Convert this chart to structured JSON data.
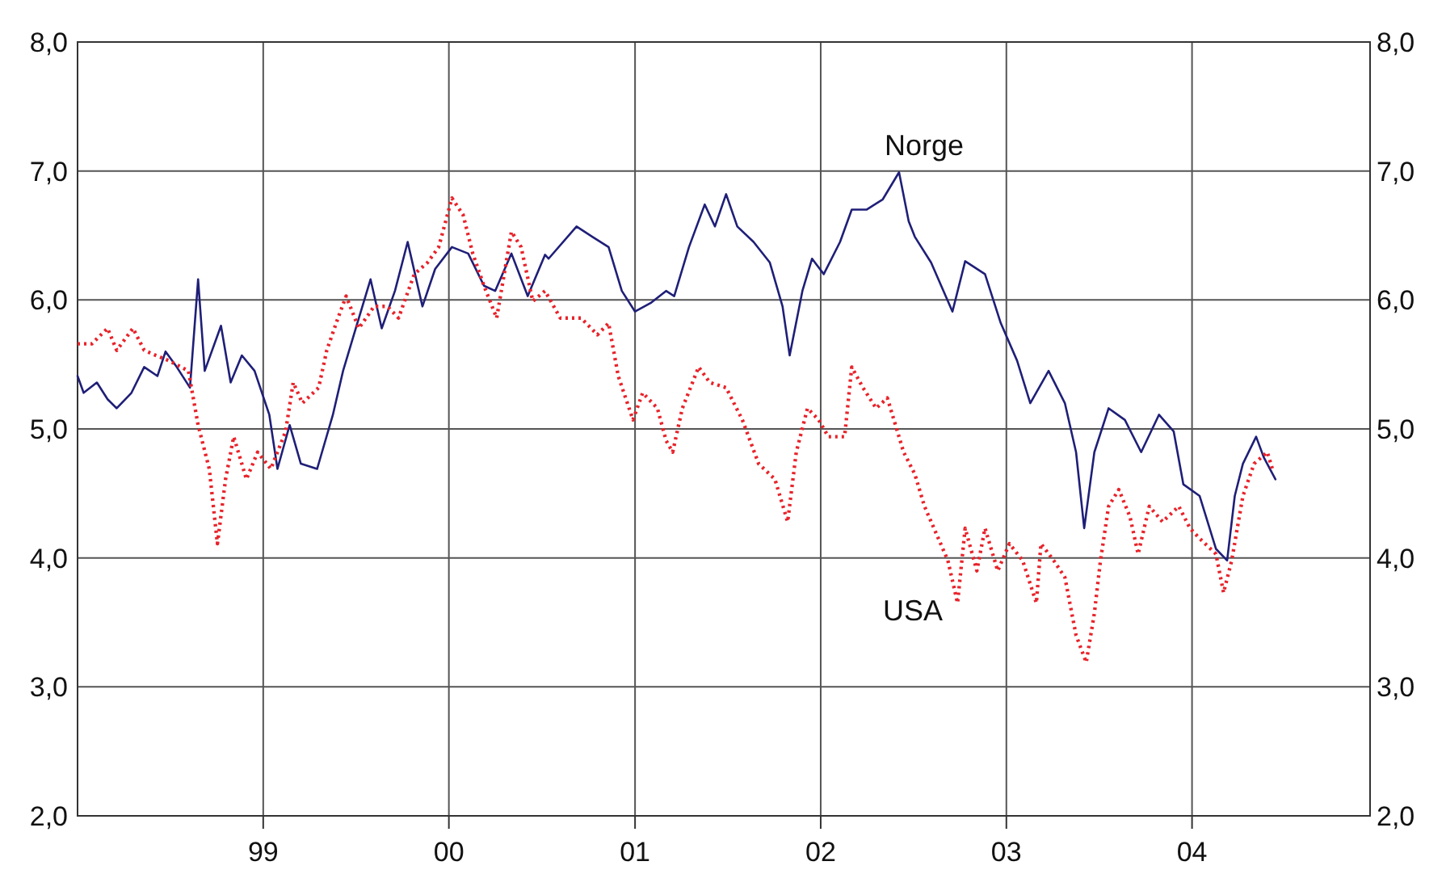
{
  "chart_data": {
    "type": "line",
    "xlim": [
      "1998-01-01",
      "2004-12-16"
    ],
    "xticks": [
      {
        "value": "1999-01-01",
        "label": "99"
      },
      {
        "value": "2000-01-01",
        "label": "00"
      },
      {
        "value": "2001-01-01",
        "label": "01"
      },
      {
        "value": "2002-01-01",
        "label": "02"
      },
      {
        "value": "2003-01-01",
        "label": "03"
      },
      {
        "value": "2004-01-01",
        "label": "04"
      }
    ],
    "ylim": [
      2,
      8
    ],
    "yticks": [
      {
        "value": 2,
        "label": "2,0"
      },
      {
        "value": 3,
        "label": "3,0"
      },
      {
        "value": 4,
        "label": "4,0"
      },
      {
        "value": 5,
        "label": "5,0"
      },
      {
        "value": 6,
        "label": "6,0"
      },
      {
        "value": 7,
        "label": "7,0"
      },
      {
        "value": 8,
        "label": "8,0"
      }
    ],
    "y2lim": [
      2,
      8
    ],
    "y2ticks": [
      {
        "value": 2,
        "label": "2,0"
      },
      {
        "value": 3,
        "label": "3,0"
      },
      {
        "value": 4,
        "label": "4,0"
      },
      {
        "value": 5,
        "label": "5,0"
      },
      {
        "value": 6,
        "label": "6,0"
      },
      {
        "value": 7,
        "label": "7,0"
      },
      {
        "value": 8,
        "label": "8,0"
      }
    ],
    "grid": true,
    "legend": false,
    "series": [
      {
        "name": "Norge",
        "color": "#1f1f78",
        "line_style": "solid",
        "x": [
          "1998-01-01",
          "1998-01-13",
          "1998-02-08",
          "1998-03-01",
          "1998-03-19",
          "1998-04-17",
          "1998-05-12",
          "1998-06-07",
          "1998-06-23",
          "1998-07-15",
          "1998-08-10",
          "1998-08-26",
          "1998-09-08",
          "1998-10-10",
          "1998-10-29",
          "1998-11-20",
          "1998-12-15",
          "1999-01-13",
          "1999-01-29",
          "1999-02-22",
          "1999-03-16",
          "1999-04-17",
          "1999-05-18",
          "1999-06-07",
          "1999-07-05",
          "1999-07-31",
          "1999-08-22",
          "1999-09-17",
          "1999-10-12",
          "1999-11-10",
          "1999-12-05",
          "2000-01-07",
          "2000-02-08",
          "2000-03-10",
          "2000-04-01",
          "2000-05-03",
          "2000-06-04",
          "2000-07-08",
          "2000-07-15",
          "2000-09-08",
          "2000-10-09",
          "2000-11-10",
          "2000-12-06",
          "2001-01-01",
          "2001-02-02",
          "2001-03-03",
          "2001-03-19",
          "2001-04-17",
          "2001-05-18",
          "2001-06-07",
          "2001-06-29",
          "2001-07-21",
          "2001-08-22",
          "2001-09-23",
          "2001-10-18",
          "2001-11-01",
          "2001-11-26",
          "2001-12-15",
          "2002-01-07",
          "2002-02-08",
          "2002-03-03",
          "2002-04-01",
          "2002-05-03",
          "2002-06-04",
          "2002-06-23",
          "2002-07-05",
          "2002-08-06",
          "2002-09-17",
          "2002-10-12",
          "2002-11-20",
          "2002-12-21",
          "2003-01-22",
          "2003-02-17",
          "2003-03-25",
          "2003-04-26",
          "2003-05-18",
          "2003-06-03",
          "2003-06-23",
          "2003-07-21",
          "2003-08-22",
          "2003-09-23",
          "2003-10-28",
          "2003-11-26",
          "2003-12-15",
          "2004-01-16",
          "2004-02-17",
          "2004-03-10",
          "2004-03-25",
          "2004-04-10",
          "2004-05-06",
          "2004-05-21",
          "2004-06-13"
        ],
        "values": [
          5.41,
          5.28,
          5.36,
          5.23,
          5.16,
          5.28,
          5.48,
          5.41,
          5.6,
          5.48,
          5.32,
          6.16,
          5.45,
          5.8,
          5.36,
          5.57,
          5.45,
          5.11,
          4.69,
          5.03,
          4.73,
          4.69,
          5.11,
          5.45,
          5.82,
          6.16,
          5.78,
          6.07,
          6.45,
          5.95,
          6.24,
          6.41,
          6.36,
          6.11,
          6.07,
          6.36,
          6.03,
          6.35,
          6.32,
          6.57,
          6.49,
          6.41,
          6.07,
          5.91,
          5.98,
          6.07,
          6.03,
          6.41,
          6.74,
          6.57,
          6.82,
          6.57,
          6.45,
          6.29,
          5.95,
          5.57,
          6.07,
          6.32,
          6.2,
          6.45,
          6.7,
          6.7,
          6.78,
          6.99,
          6.61,
          6.49,
          6.29,
          5.91,
          6.3,
          6.2,
          5.82,
          5.53,
          5.2,
          5.45,
          5.2,
          4.82,
          4.23,
          4.82,
          5.16,
          5.07,
          4.82,
          5.11,
          4.98,
          4.57,
          4.48,
          4.07,
          3.98,
          4.48,
          4.73,
          4.94,
          4.78,
          4.61
        ]
      },
      {
        "name": "USA",
        "color": "#e8232a",
        "line_style": "dotted",
        "x": [
          "1998-01-01",
          "1998-01-29",
          "1998-03-01",
          "1998-03-19",
          "1998-04-20",
          "1998-05-12",
          "1998-06-04",
          "1998-06-29",
          "1998-08-07",
          "1998-08-26",
          "1998-09-17",
          "1998-10-03",
          "1998-10-19",
          "1998-11-04",
          "1998-11-29",
          "1998-12-21",
          "1999-01-16",
          "1999-02-14",
          "1999-03-01",
          "1999-03-19",
          "1999-04-20",
          "1999-05-06",
          "1999-05-28",
          "1999-06-13",
          "1999-07-08",
          "1999-08-07",
          "1999-09-02",
          "1999-09-24",
          "1999-10-25",
          "1999-11-20",
          "1999-12-12",
          "2000-01-07",
          "2000-01-29",
          "2000-02-17",
          "2000-03-10",
          "2000-04-04",
          "2000-05-03",
          "2000-05-22",
          "2000-06-14",
          "2000-07-08",
          "2000-08-07",
          "2000-09-17",
          "2000-10-19",
          "2000-11-10",
          "2000-11-29",
          "2000-12-28",
          "2001-01-16",
          "2001-02-14",
          "2001-03-03",
          "2001-03-16",
          "2001-04-04",
          "2001-05-06",
          "2001-05-28",
          "2001-06-29",
          "2001-07-31",
          "2001-09-01",
          "2001-10-03",
          "2001-10-28",
          "2001-11-14",
          "2001-12-06",
          "2001-12-28",
          "2002-01-16",
          "2002-02-17",
          "2002-03-03",
          "2002-03-25",
          "2002-04-20",
          "2002-05-12",
          "2002-06-13",
          "2002-07-05",
          "2002-07-24",
          "2002-08-16",
          "2002-09-08",
          "2002-09-27",
          "2002-10-12",
          "2002-11-04",
          "2002-11-20",
          "2002-12-15",
          "2003-01-07",
          "2003-02-02",
          "2003-03-01",
          "2003-03-10",
          "2003-04-04",
          "2003-04-26",
          "2003-05-18",
          "2003-06-07",
          "2003-06-23",
          "2003-07-05",
          "2003-07-21",
          "2003-08-10",
          "2003-09-01",
          "2003-09-17",
          "2003-10-09",
          "2003-11-04",
          "2003-12-06",
          "2003-12-28",
          "2004-01-16",
          "2004-02-17",
          "2004-03-03",
          "2004-03-19",
          "2004-04-10",
          "2004-05-02",
          "2004-05-28",
          "2004-06-07"
        ],
        "values": [
          5.66,
          5.66,
          5.78,
          5.61,
          5.78,
          5.61,
          5.57,
          5.53,
          5.45,
          5.03,
          4.69,
          4.11,
          4.61,
          4.94,
          4.61,
          4.82,
          4.69,
          4.98,
          5.36,
          5.2,
          5.32,
          5.61,
          5.86,
          6.03,
          5.78,
          5.95,
          5.95,
          5.86,
          6.2,
          6.29,
          6.41,
          6.79,
          6.66,
          6.36,
          6.11,
          5.86,
          6.53,
          6.41,
          5.99,
          6.07,
          5.86,
          5.86,
          5.73,
          5.82,
          5.41,
          5.07,
          5.28,
          5.16,
          4.91,
          4.82,
          5.16,
          5.48,
          5.36,
          5.32,
          5.07,
          4.73,
          4.61,
          4.28,
          4.82,
          5.16,
          5.07,
          4.94,
          4.94,
          5.48,
          5.32,
          5.16,
          5.24,
          4.82,
          4.65,
          4.4,
          4.19,
          3.98,
          3.65,
          4.23,
          3.9,
          4.23,
          3.9,
          4.11,
          3.98,
          3.65,
          4.11,
          3.98,
          3.85,
          3.4,
          3.19,
          3.57,
          3.98,
          4.4,
          4.53,
          4.32,
          4.03,
          4.4,
          4.28,
          4.4,
          4.23,
          4.15,
          4.03,
          3.73,
          3.98,
          4.48,
          4.73,
          4.82,
          4.69
        ]
      }
    ]
  }
}
